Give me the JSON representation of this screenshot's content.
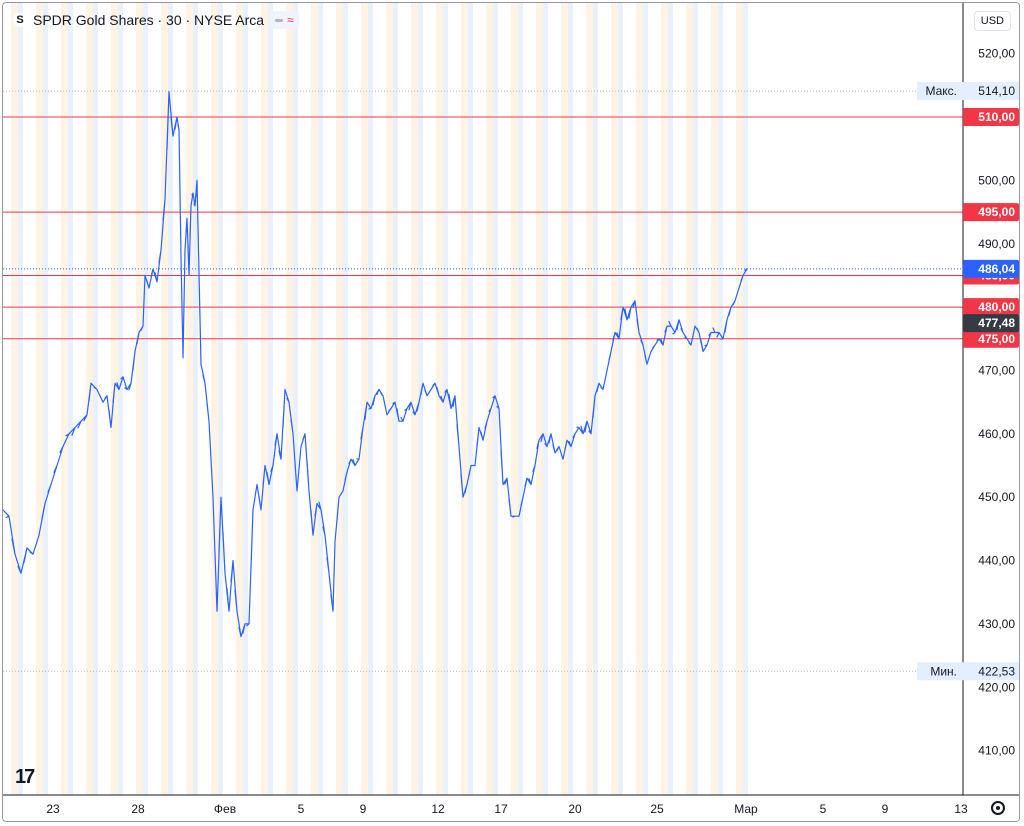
{
  "legend": {
    "symbol_badge": "S",
    "title": "SPDR Gold Shares · 30 · NYSE Arca",
    "pill_icons": [
      "minus-icon",
      "wave-icon"
    ]
  },
  "currency": "USD",
  "colors": {
    "line": "#2962ff",
    "resistance": "#f23645",
    "axis_text": "#131722",
    "grid_dotted": "#b2b5be",
    "last_price_bg": "#2962ff",
    "current_price_bg": "#363a45",
    "hl_label_bg": "#e3effd",
    "session_pre": "#fff3e0",
    "session_post": "#e8f0fe"
  },
  "chart_data": {
    "type": "line",
    "y_axis_ticks": [
      "520,00",
      "510,00",
      "500,00",
      "490,00",
      "480,00",
      "470,00",
      "460,00",
      "450,00",
      "440,00",
      "430,00",
      "420,00",
      "410,00"
    ],
    "x_axis_ticks": [
      "23",
      "28",
      "Фев",
      "5",
      "9",
      "12",
      "17",
      "20",
      "25",
      "Мар",
      "5",
      "9",
      "13"
    ],
    "ylim": [
      403,
      528
    ],
    "horizontal_lines": [
      {
        "value": 510.0,
        "label": "510,00"
      },
      {
        "value": 495.0,
        "label": "495,00"
      },
      {
        "value": 485.0,
        "label": "485,00"
      },
      {
        "value": 480.0,
        "label": "480,00"
      },
      {
        "value": 475.0,
        "label": "475,00"
      }
    ],
    "high": {
      "label": "Макс.",
      "value": 514.1,
      "text": "514,10"
    },
    "low": {
      "label": "Мин.",
      "value": 422.53,
      "text": "422,53"
    },
    "last_price": {
      "value": 486.04,
      "text": "486,04"
    },
    "current_price": {
      "value": 477.48,
      "text": "477,48"
    },
    "series": [
      {
        "values": [
          [
            0,
            448
          ],
          [
            6,
            447
          ],
          [
            12,
            441
          ],
          [
            18,
            438
          ],
          [
            24,
            442
          ],
          [
            30,
            441
          ],
          [
            36,
            444
          ],
          [
            42,
            449
          ],
          [
            48,
            452
          ],
          [
            54,
            455
          ],
          [
            60,
            458
          ],
          [
            66,
            460
          ],
          [
            72,
            461
          ],
          [
            78,
            462
          ],
          [
            84,
            463
          ],
          [
            88,
            468
          ],
          [
            94,
            467
          ],
          [
            100,
            465
          ],
          [
            104,
            466
          ],
          [
            108,
            461
          ],
          [
            112,
            468
          ],
          [
            116,
            467
          ],
          [
            120,
            469
          ],
          [
            124,
            467
          ],
          [
            128,
            468
          ],
          [
            132,
            473
          ],
          [
            136,
            476
          ],
          [
            140,
            477
          ],
          [
            142,
            485
          ],
          [
            146,
            483
          ],
          [
            150,
            486
          ],
          [
            154,
            484
          ],
          [
            158,
            489
          ],
          [
            162,
            497
          ],
          [
            166,
            514
          ],
          [
            170,
            507
          ],
          [
            174,
            510
          ],
          [
            176,
            508
          ],
          [
            178,
            488
          ],
          [
            180,
            472
          ],
          [
            182,
            489
          ],
          [
            184,
            494
          ],
          [
            186,
            485
          ],
          [
            188,
            496
          ],
          [
            190,
            498
          ],
          [
            192,
            496
          ],
          [
            194,
            500
          ],
          [
            198,
            471
          ],
          [
            202,
            468
          ],
          [
            206,
            462
          ],
          [
            210,
            450
          ],
          [
            214,
            432
          ],
          [
            218,
            450
          ],
          [
            222,
            438
          ],
          [
            226,
            432
          ],
          [
            230,
            440
          ],
          [
            234,
            432
          ],
          [
            238,
            428
          ],
          [
            242,
            430
          ],
          [
            246,
            430
          ],
          [
            250,
            448
          ],
          [
            254,
            452
          ],
          [
            258,
            448
          ],
          [
            262,
            455
          ],
          [
            266,
            452
          ],
          [
            270,
            455
          ],
          [
            274,
            460
          ],
          [
            278,
            456
          ],
          [
            282,
            467
          ],
          [
            286,
            465
          ],
          [
            290,
            460
          ],
          [
            294,
            451
          ],
          [
            298,
            458
          ],
          [
            302,
            460
          ],
          [
            306,
            451
          ],
          [
            310,
            444
          ],
          [
            314,
            449
          ],
          [
            318,
            448
          ],
          [
            322,
            444
          ],
          [
            326,
            438
          ],
          [
            330,
            432
          ],
          [
            332,
            443
          ],
          [
            336,
            450
          ],
          [
            340,
            451
          ],
          [
            344,
            454
          ],
          [
            348,
            456
          ],
          [
            352,
            455
          ],
          [
            356,
            456
          ],
          [
            360,
            461
          ],
          [
            364,
            465
          ],
          [
            368,
            464
          ],
          [
            372,
            466
          ],
          [
            376,
            467
          ],
          [
            380,
            466
          ],
          [
            384,
            463
          ],
          [
            388,
            464
          ],
          [
            392,
            465
          ],
          [
            396,
            462
          ],
          [
            400,
            462
          ],
          [
            404,
            464
          ],
          [
            408,
            465
          ],
          [
            412,
            463
          ],
          [
            416,
            465
          ],
          [
            420,
            468
          ],
          [
            424,
            466
          ],
          [
            428,
            467
          ],
          [
            432,
            468
          ],
          [
            436,
            466
          ],
          [
            440,
            465
          ],
          [
            444,
            467
          ],
          [
            448,
            464
          ],
          [
            452,
            466
          ],
          [
            456,
            458
          ],
          [
            460,
            450
          ],
          [
            464,
            452
          ],
          [
            468,
            455
          ],
          [
            472,
            455
          ],
          [
            476,
            461
          ],
          [
            480,
            459
          ],
          [
            484,
            462
          ],
          [
            488,
            464
          ],
          [
            492,
            466
          ],
          [
            496,
            464
          ],
          [
            500,
            452
          ],
          [
            504,
            453
          ],
          [
            508,
            447
          ],
          [
            512,
            447
          ],
          [
            516,
            447
          ],
          [
            520,
            450
          ],
          [
            524,
            453
          ],
          [
            528,
            452
          ],
          [
            532,
            455
          ],
          [
            536,
            459
          ],
          [
            540,
            460
          ],
          [
            544,
            458
          ],
          [
            548,
            460
          ],
          [
            552,
            457
          ],
          [
            556,
            458
          ],
          [
            560,
            456
          ],
          [
            564,
            459
          ],
          [
            568,
            458
          ],
          [
            572,
            460
          ],
          [
            576,
            461
          ],
          [
            580,
            460
          ],
          [
            584,
            462
          ],
          [
            588,
            460
          ],
          [
            592,
            466
          ],
          [
            596,
            468
          ],
          [
            600,
            467
          ],
          [
            604,
            470
          ],
          [
            608,
            473
          ],
          [
            612,
            476
          ],
          [
            616,
            475
          ],
          [
            620,
            480
          ],
          [
            624,
            478
          ],
          [
            628,
            480
          ],
          [
            632,
            481
          ],
          [
            636,
            476
          ],
          [
            640,
            474
          ],
          [
            644,
            471
          ],
          [
            648,
            473
          ],
          [
            652,
            474
          ],
          [
            656,
            475
          ],
          [
            660,
            474
          ],
          [
            664,
            477
          ],
          [
            668,
            477
          ],
          [
            672,
            476
          ],
          [
            676,
            478
          ],
          [
            680,
            476
          ],
          [
            684,
            475
          ],
          [
            688,
            474
          ],
          [
            692,
            477
          ],
          [
            696,
            476
          ],
          [
            700,
            473
          ],
          [
            704,
            474
          ],
          [
            708,
            476
          ],
          [
            712,
            476
          ],
          [
            716,
            476
          ],
          [
            720,
            475
          ],
          [
            724,
            478
          ],
          [
            728,
            480
          ],
          [
            732,
            481
          ],
          [
            736,
            483
          ],
          [
            740,
            485
          ],
          [
            744,
            486.04
          ]
        ]
      }
    ]
  }
}
